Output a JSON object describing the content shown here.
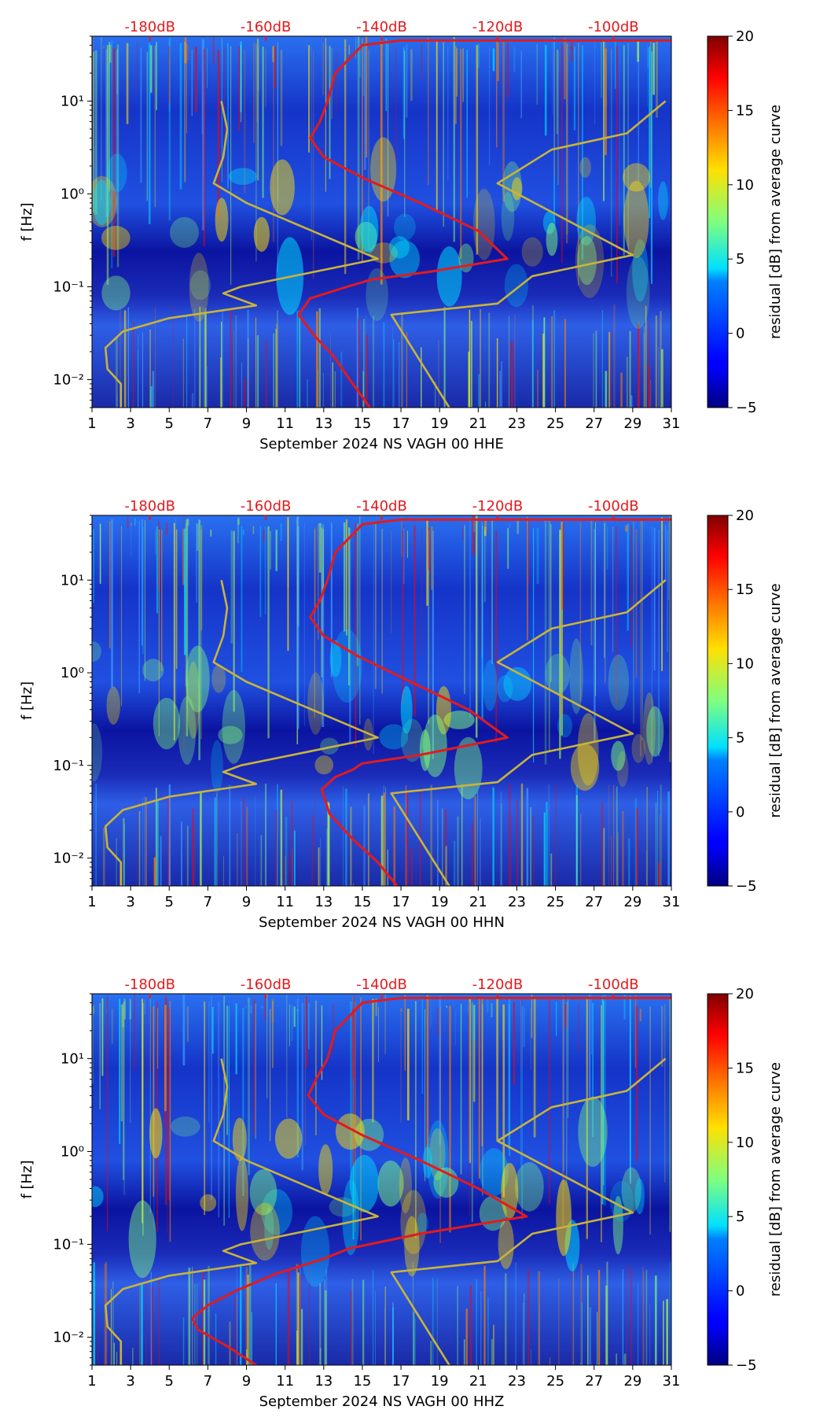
{
  "chart_data": [
    {
      "type": "heatmap",
      "title": "",
      "xlabel": "September 2024 NS VAGH 00 HHE",
      "ylabel": "f [Hz]",
      "xlim": [
        1,
        31
      ],
      "ylim": [
        0.005,
        50
      ],
      "yscale": "log",
      "xticks": [
        1,
        3,
        5,
        7,
        9,
        11,
        13,
        15,
        17,
        19,
        21,
        23,
        25,
        27,
        29,
        31
      ],
      "yticks": [
        {
          "value": 0.01,
          "label": "10⁻²"
        },
        {
          "value": 0.1,
          "label": "10⁻¹"
        },
        {
          "value": 1,
          "label": "10⁰"
        },
        {
          "value": 10,
          "label": "10¹"
        }
      ],
      "top_axis": {
        "labels": [
          "-180dB",
          "-160dB",
          "-140dB",
          "-120dB",
          "-100dB"
        ],
        "positions_day": [
          4,
          10,
          16,
          22,
          28
        ]
      },
      "colorbar": {
        "label": "residual [dB] from average curve",
        "range": [
          -5,
          20
        ],
        "ticks": [
          -5,
          0,
          5,
          10,
          15,
          20
        ],
        "colormap": "jet"
      },
      "series": [
        {
          "name": "average noise curve",
          "color": "#e41a1c",
          "points": [
            [
              15.4,
              0.005
            ],
            [
              14.5,
              0.009
            ],
            [
              13.5,
              0.018
            ],
            [
              12.5,
              0.03
            ],
            [
              11.7,
              0.05
            ],
            [
              12.3,
              0.075
            ],
            [
              14.2,
              0.1
            ],
            [
              15.5,
              0.12
            ],
            [
              18.5,
              0.145
            ],
            [
              22.5,
              0.2
            ],
            [
              21,
              0.4
            ],
            [
              18,
              0.8
            ],
            [
              15,
              1.5
            ],
            [
              13,
              2.5
            ],
            [
              12.3,
              4
            ],
            [
              12.8,
              6
            ],
            [
              13.2,
              10
            ],
            [
              13.6,
              20
            ],
            [
              15,
              40
            ],
            [
              17,
              45
            ],
            [
              31,
              45
            ]
          ]
        },
        {
          "name": "NLNM",
          "color": "#c8b43a",
          "points": [
            [
              2.5,
              0.005
            ],
            [
              2.5,
              0.009
            ],
            [
              1.8,
              0.013
            ],
            [
              1.7,
              0.022
            ],
            [
              2.6,
              0.033
            ],
            [
              5,
              0.046
            ],
            [
              9.5,
              0.063
            ],
            [
              7.8,
              0.085
            ],
            [
              8.7,
              0.1
            ],
            [
              15.8,
              0.2
            ],
            [
              9,
              0.8
            ],
            [
              7.3,
              1.3
            ],
            [
              7.8,
              2.5
            ],
            [
              8,
              5
            ],
            [
              7.7,
              10
            ]
          ]
        },
        {
          "name": "NHNM",
          "color": "#c8b43a",
          "points": [
            [
              19.5,
              0.005
            ],
            [
              16.5,
              0.05
            ],
            [
              22,
              0.066
            ],
            [
              23.8,
              0.13
            ],
            [
              29,
              0.22
            ],
            [
              22,
              1.3
            ],
            [
              24.8,
              3
            ],
            [
              28.7,
              4.5
            ],
            [
              30.7,
              10
            ]
          ]
        }
      ]
    },
    {
      "type": "heatmap",
      "title": "",
      "xlabel": "September 2024 NS VAGH 00 HHN",
      "ylabel": "f [Hz]",
      "xlim": [
        1,
        31
      ],
      "ylim": [
        0.005,
        50
      ],
      "yscale": "log",
      "xticks": [
        1,
        3,
        5,
        7,
        9,
        11,
        13,
        15,
        17,
        19,
        21,
        23,
        25,
        27,
        29,
        31
      ],
      "yticks": [
        {
          "value": 0.01,
          "label": "10⁻²"
        },
        {
          "value": 0.1,
          "label": "10⁻¹"
        },
        {
          "value": 1,
          "label": "10⁰"
        },
        {
          "value": 10,
          "label": "10¹"
        }
      ],
      "top_axis": {
        "labels": [
          "-180dB",
          "-160dB",
          "-140dB",
          "-120dB",
          "-100dB"
        ],
        "positions_day": [
          4,
          10,
          16,
          22,
          28
        ]
      },
      "colorbar": {
        "label": "residual [dB] from average curve",
        "range": [
          -5,
          20
        ],
        "ticks": [
          -5,
          0,
          5,
          10,
          15,
          20
        ],
        "colormap": "jet"
      },
      "series": [
        {
          "name": "average noise curve",
          "color": "#e41a1c",
          "points": [
            [
              16.8,
              0.005
            ],
            [
              15.8,
              0.009
            ],
            [
              14.5,
              0.016
            ],
            [
              13.3,
              0.03
            ],
            [
              12.9,
              0.055
            ],
            [
              13.6,
              0.075
            ],
            [
              14.5,
              0.09
            ],
            [
              15,
              0.105
            ],
            [
              18,
              0.13
            ],
            [
              22.5,
              0.2
            ],
            [
              20.5,
              0.4
            ],
            [
              17.5,
              0.8
            ],
            [
              14.8,
              1.5
            ],
            [
              13,
              2.5
            ],
            [
              12.3,
              4
            ],
            [
              12.8,
              6
            ],
            [
              13.2,
              10
            ],
            [
              13.6,
              20
            ],
            [
              15,
              40
            ],
            [
              17,
              45
            ],
            [
              31,
              45
            ]
          ]
        },
        {
          "name": "NLNM",
          "color": "#c8b43a",
          "points": [
            [
              2.5,
              0.005
            ],
            [
              2.5,
              0.009
            ],
            [
              1.8,
              0.013
            ],
            [
              1.7,
              0.022
            ],
            [
              2.6,
              0.033
            ],
            [
              5,
              0.046
            ],
            [
              9.5,
              0.063
            ],
            [
              7.8,
              0.085
            ],
            [
              8.7,
              0.1
            ],
            [
              15.8,
              0.2
            ],
            [
              9,
              0.8
            ],
            [
              7.3,
              1.3
            ],
            [
              7.8,
              2.5
            ],
            [
              8,
              5
            ],
            [
              7.7,
              10
            ]
          ]
        },
        {
          "name": "NHNM",
          "color": "#c8b43a",
          "points": [
            [
              19.5,
              0.005
            ],
            [
              16.5,
              0.05
            ],
            [
              22,
              0.066
            ],
            [
              23.8,
              0.13
            ],
            [
              29,
              0.22
            ],
            [
              22,
              1.3
            ],
            [
              24.8,
              3
            ],
            [
              28.7,
              4.5
            ],
            [
              30.7,
              10
            ]
          ]
        }
      ]
    },
    {
      "type": "heatmap",
      "title": "",
      "xlabel": "September 2024 NS VAGH 00 HHZ",
      "ylabel": "f [Hz]",
      "xlim": [
        1,
        31
      ],
      "ylim": [
        0.005,
        50
      ],
      "yscale": "log",
      "xticks": [
        1,
        3,
        5,
        7,
        9,
        11,
        13,
        15,
        17,
        19,
        21,
        23,
        25,
        27,
        29,
        31
      ],
      "yticks": [
        {
          "value": 0.01,
          "label": "10⁻²"
        },
        {
          "value": 0.1,
          "label": "10⁻¹"
        },
        {
          "value": 1,
          "label": "10⁰"
        },
        {
          "value": 10,
          "label": "10¹"
        }
      ],
      "top_axis": {
        "labels": [
          "-180dB",
          "-160dB",
          "-140dB",
          "-120dB",
          "-100dB"
        ],
        "positions_day": [
          4,
          10,
          16,
          22,
          28
        ]
      },
      "colorbar": {
        "label": "residual [dB] from average curve",
        "range": [
          -5,
          20
        ],
        "ticks": [
          -5,
          0,
          5,
          10,
          15,
          20
        ],
        "colormap": "jet"
      },
      "series": [
        {
          "name": "average noise curve",
          "color": "#e41a1c",
          "points": [
            [
              9.5,
              0.005
            ],
            [
              8,
              0.008
            ],
            [
              6.5,
              0.012
            ],
            [
              6.2,
              0.016
            ],
            [
              7,
              0.022
            ],
            [
              8.5,
              0.032
            ],
            [
              10.5,
              0.048
            ],
            [
              13,
              0.07
            ],
            [
              14.3,
              0.09
            ],
            [
              18,
              0.13
            ],
            [
              23.5,
              0.2
            ],
            [
              21,
              0.4
            ],
            [
              18,
              0.8
            ],
            [
              15,
              1.5
            ],
            [
              13,
              2.5
            ],
            [
              12.2,
              4
            ],
            [
              12.6,
              6
            ],
            [
              13.2,
              10
            ],
            [
              13.6,
              20
            ],
            [
              15,
              40
            ],
            [
              17,
              45
            ],
            [
              31,
              45
            ]
          ]
        },
        {
          "name": "NLNM",
          "color": "#c8b43a",
          "points": [
            [
              2.5,
              0.005
            ],
            [
              2.5,
              0.009
            ],
            [
              1.8,
              0.013
            ],
            [
              1.7,
              0.022
            ],
            [
              2.6,
              0.033
            ],
            [
              5,
              0.046
            ],
            [
              9.5,
              0.063
            ],
            [
              7.8,
              0.085
            ],
            [
              8.7,
              0.1
            ],
            [
              15.8,
              0.2
            ],
            [
              9,
              0.8
            ],
            [
              7.3,
              1.3
            ],
            [
              7.8,
              2.5
            ],
            [
              8,
              5
            ],
            [
              7.7,
              10
            ]
          ]
        },
        {
          "name": "NHNM",
          "color": "#c8b43a",
          "points": [
            [
              19.5,
              0.005
            ],
            [
              16.5,
              0.05
            ],
            [
              22,
              0.066
            ],
            [
              23.8,
              0.13
            ],
            [
              29,
              0.22
            ],
            [
              22,
              1.3
            ],
            [
              24.8,
              3
            ],
            [
              28.7,
              4.5
            ],
            [
              30.7,
              10
            ]
          ]
        }
      ]
    }
  ]
}
